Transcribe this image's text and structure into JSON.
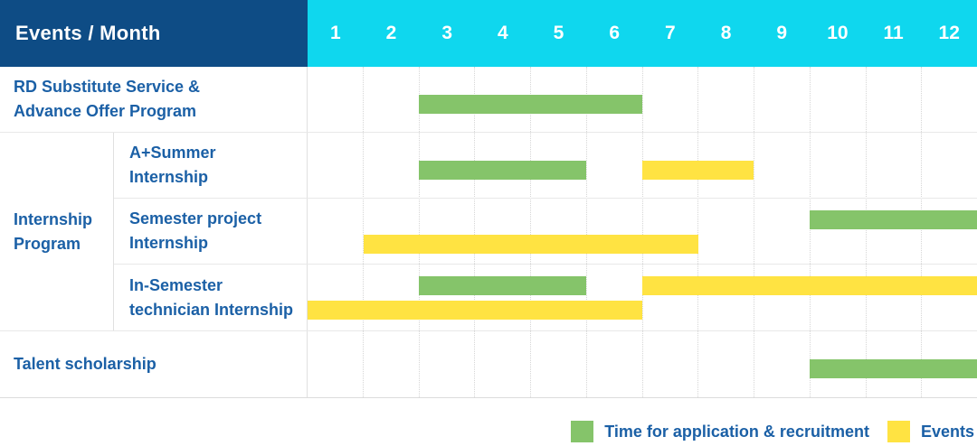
{
  "colors": {
    "header_navy": "#0e4c85",
    "month_strip_cyan": "#0fd7ee",
    "label_text_blue": "#1b60a6",
    "bar_green": "#85c46a",
    "bar_yellow": "#ffe342"
  },
  "chart_data": {
    "type": "bar",
    "subtype": "gantt",
    "title": "Events / Month",
    "x": {
      "label": "Month",
      "range": [
        1,
        12
      ],
      "ticks": [
        "1",
        "2",
        "3",
        "4",
        "5",
        "6",
        "7",
        "8",
        "9",
        "10",
        "11",
        "12"
      ]
    },
    "grid": "dotted vertical month separators, solid row separators",
    "legend_position": "bottom-right",
    "legend": [
      {
        "key": "application",
        "label": "Time for application & recruitment",
        "color": "#85c46a"
      },
      {
        "key": "events",
        "label": "Events",
        "color": "#ffe342"
      }
    ],
    "group": {
      "label": "Internship\nProgram",
      "member_row_indices": [
        1,
        2,
        3
      ]
    },
    "rows": [
      {
        "label": "RD Substitute Service &\nAdvance Offer Program",
        "group": null,
        "bars": [
          {
            "series": "application",
            "start_month": 3,
            "end_month": 6,
            "lane": "single"
          }
        ]
      },
      {
        "label": "A+Summer\nInternship",
        "group": "Internship Program",
        "bars": [
          {
            "series": "application",
            "start_month": 3,
            "end_month": 5,
            "lane": "single"
          },
          {
            "series": "events",
            "start_month": 7,
            "end_month": 8,
            "lane": "single"
          }
        ]
      },
      {
        "label": "Semester project\nInternship",
        "group": "Internship Program",
        "bars": [
          {
            "series": "application",
            "start_month": 10,
            "end_month": 12,
            "lane": "top"
          },
          {
            "series": "events",
            "start_month": 2,
            "end_month": 7,
            "lane": "bottom"
          }
        ]
      },
      {
        "label": "In-Semester\ntechnician Internship",
        "group": "Internship Program",
        "bars": [
          {
            "series": "application",
            "start_month": 3,
            "end_month": 5,
            "lane": "top"
          },
          {
            "series": "events",
            "start_month": 7,
            "end_month": 12,
            "lane": "top"
          },
          {
            "series": "events",
            "start_month": 1,
            "end_month": 6,
            "lane": "bottom"
          }
        ]
      },
      {
        "label": "Talent scholarship",
        "group": null,
        "bars": [
          {
            "series": "application",
            "start_month": 10,
            "end_month": 12,
            "lane": "single"
          }
        ]
      }
    ]
  }
}
